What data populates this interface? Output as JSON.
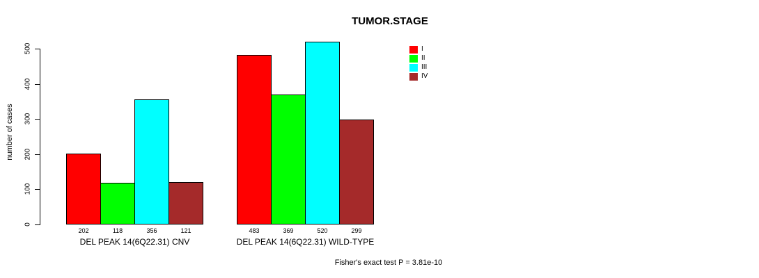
{
  "title": "TUMOR.STAGE",
  "annotation": "Fisher's exact test P = 3.81e-10",
  "chart_data": {
    "type": "bar",
    "title": "TUMOR.STAGE",
    "xlabel": "",
    "ylabel": "number of cases",
    "categories": [
      "DEL PEAK 14(6Q22.31) CNV",
      "DEL PEAK 14(6Q22.31) WILD-TYPE"
    ],
    "series": [
      {
        "name": "I",
        "color": "#ff0000",
        "values": [
          202,
          483
        ]
      },
      {
        "name": "II",
        "color": "#00ff00",
        "values": [
          118,
          369
        ]
      },
      {
        "name": "III",
        "color": "#00ffff",
        "values": [
          356,
          520
        ]
      },
      {
        "name": "IV",
        "color": "#a52a2a",
        "values": [
          121,
          299
        ]
      }
    ],
    "value_labels": [
      [
        "202",
        "118",
        "356",
        "121"
      ],
      [
        "483",
        "369",
        "520",
        "299"
      ]
    ],
    "yticks": [
      0,
      100,
      200,
      300,
      400,
      500
    ],
    "ylim": [
      0,
      500
    ],
    "grid": false,
    "legend_position": "top-right",
    "legend_labels": [
      "I",
      "II",
      "III",
      "IV"
    ],
    "bar_border_color": "#000000",
    "annotation": "Fisher's exact test P = 3.81e-10"
  }
}
